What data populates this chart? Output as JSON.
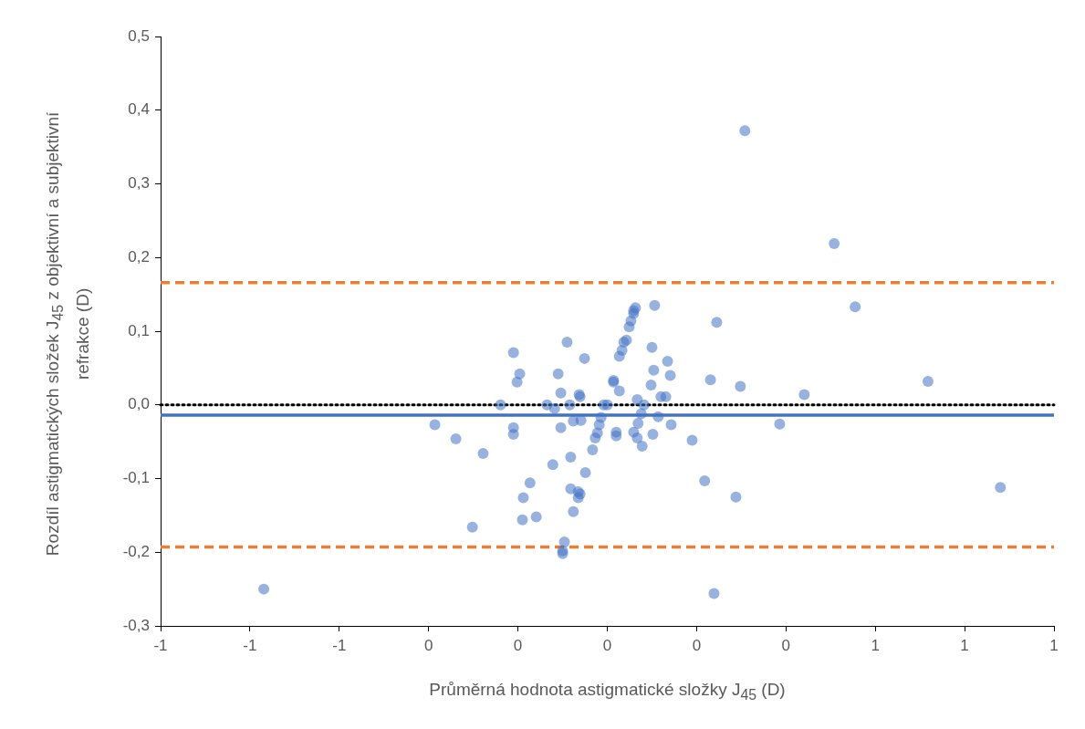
{
  "chart_data": {
    "type": "scatter",
    "xlabel": "Průměrná hodnota astigmatické složky J$_{45}$ (D)",
    "ylabel": "Rozdíl astigmatických složek J$_{45}$ z objektivní a subjektivní refrakce (D)",
    "marker": "circle",
    "xlim": [
      -1,
      1
    ],
    "xticks": [
      {
        "value": -1,
        "label": "-1"
      },
      {
        "value": -0.8,
        "label": "-1"
      },
      {
        "value": -0.6,
        "label": "-1"
      },
      {
        "value": -0.4,
        "label": "0"
      },
      {
        "value": -0.2,
        "label": "0"
      },
      {
        "value": 0,
        "label": "0"
      },
      {
        "value": 0.2,
        "label": "0"
      },
      {
        "value": 0.4,
        "label": "0"
      },
      {
        "value": 0.6,
        "label": "1"
      },
      {
        "value": 0.8,
        "label": "1"
      },
      {
        "value": 1,
        "label": "1"
      }
    ],
    "ylim": [
      -0.3,
      0.5
    ],
    "yticks": [
      {
        "value": -0.3,
        "label": "-0,3"
      },
      {
        "value": -0.2,
        "label": "-0,2"
      },
      {
        "value": -0.1,
        "label": "-0,1"
      },
      {
        "value": 0,
        "label": "0,0"
      },
      {
        "value": 0.1,
        "label": "0,1"
      },
      {
        "value": 0.2,
        "label": "0,2"
      },
      {
        "value": 0.3,
        "label": "0,3"
      },
      {
        "value": 0.4,
        "label": "0,4"
      },
      {
        "value": 0.5,
        "label": "0,5"
      }
    ],
    "series": [
      {
        "color": "#4472c4",
        "x": [
          -0.769,
          -0.386,
          -0.339,
          -0.278,
          -0.302,
          -0.239,
          -0.21,
          -0.21,
          -0.21,
          -0.202,
          -0.196,
          -0.188,
          -0.19,
          -0.173,
          -0.159,
          -0.135,
          -0.122,
          -0.118,
          -0.11,
          -0.104,
          -0.104,
          -0.1,
          -0.1,
          -0.096,
          -0.09,
          -0.084,
          -0.082,
          -0.082,
          -0.076,
          -0.076,
          -0.063,
          -0.061,
          -0.061,
          -0.065,
          -0.065,
          -0.059,
          -0.051,
          -0.049,
          -0.033,
          -0.027,
          -0.022,
          -0.018,
          -0.014,
          -0.008,
          0,
          0.014,
          0.014,
          0.02,
          0.02,
          0.027,
          0.027,
          0.033,
          0.037,
          0.043,
          0.049,
          0.053,
          0.059,
          0.059,
          0.063,
          0.059,
          0.067,
          0.067,
          0.069,
          0.076,
          0.078,
          0.082,
          0.098,
          0.1,
          0.102,
          0.104,
          0.106,
          0.114,
          0.12,
          0.131,
          0.135,
          0.141,
          0.143,
          0.19,
          0.218,
          0.231,
          0.239,
          0.245,
          0.288,
          0.298,
          0.308,
          0.386,
          0.441,
          0.508,
          0.555,
          0.718,
          0.88
        ],
        "values": [
          -0.25,
          -0.027,
          -0.046,
          -0.066,
          -0.166,
          0,
          0.071,
          -0.031,
          -0.04,
          0.031,
          0.042,
          -0.126,
          -0.156,
          -0.106,
          -0.152,
          0,
          -0.081,
          -0.005,
          0.042,
          0.016,
          -0.031,
          -0.198,
          -0.202,
          -0.186,
          0.085,
          0,
          -0.071,
          -0.114,
          -0.022,
          -0.145,
          0.014,
          0.011,
          -0.121,
          -0.126,
          -0.118,
          -0.021,
          0.063,
          -0.092,
          -0.061,
          -0.045,
          -0.038,
          -0.027,
          -0.017,
          0,
          0,
          0.033,
          0.031,
          -0.042,
          -0.037,
          0.019,
          0.066,
          0.074,
          0.085,
          0.088,
          0.106,
          0.114,
          0.124,
          0.128,
          0.132,
          -0.037,
          -0.045,
          0.007,
          -0.025,
          -0.012,
          -0.056,
          0,
          0.027,
          0.078,
          -0.04,
          0.047,
          0.135,
          -0.016,
          0.011,
          0.011,
          0.059,
          0.04,
          -0.027,
          -0.048,
          -0.103,
          0.034,
          -0.256,
          0.112,
          -0.125,
          0.025,
          0.372,
          -0.026,
          0.014,
          0.219,
          0.133,
          0.032,
          -0.112
        ]
      }
    ],
    "ref_lines": [
      {
        "axis": "y",
        "value": 0.166,
        "color": "#ed7d31",
        "line_style": "dashed"
      },
      {
        "axis": "y",
        "value": -0.193,
        "color": "#ed7d31",
        "line_style": "dashed"
      },
      {
        "axis": "y",
        "value": -0.014,
        "color": "#4472c4",
        "line_style": "solid"
      },
      {
        "axis": "y",
        "value": 0,
        "color": "#000000",
        "line_style": "dotted"
      }
    ]
  }
}
